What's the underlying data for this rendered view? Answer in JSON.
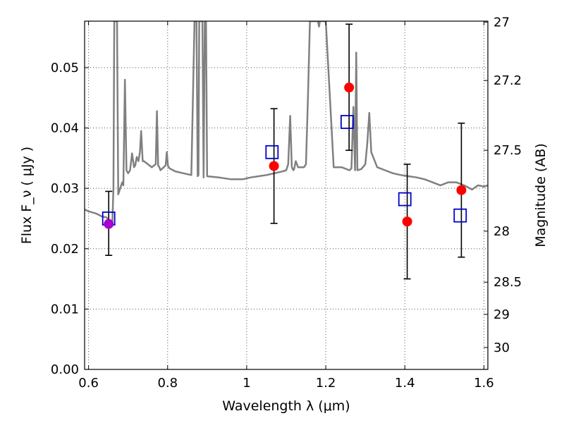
{
  "chart_data": {
    "type": "scatter",
    "xlabel": "Wavelength  λ (μm)",
    "ylabel": "Flux  F_ν  ( μJy )",
    "y2label": "Magnitude (AB)",
    "xlim": [
      0.59,
      1.61
    ],
    "ylim": [
      0.0,
      0.0577
    ],
    "grid": true,
    "legend": "none",
    "x_ticks": [
      0.6,
      0.8,
      1.0,
      1.2,
      1.4,
      1.6
    ],
    "x_tick_labels": [
      "0.6",
      "0.8",
      "1",
      "1.2",
      "1.4",
      "1.6"
    ],
    "y_ticks": [
      0.0,
      0.01,
      0.02,
      0.03,
      0.04,
      0.05
    ],
    "y_tick_labels": [
      "0.00",
      "0.01",
      "0.02",
      "0.03",
      "0.04",
      "0.05"
    ],
    "y2_ticks": [
      27,
      27.2,
      27.5,
      28,
      28.5,
      29,
      30
    ],
    "y2_tick_labels": [
      "27",
      "27.2",
      "27.5",
      "28",
      "28.5",
      "29",
      "30"
    ],
    "colors": {
      "spectrum": "#808080",
      "observed": "#ff0000",
      "observed_overlap": "#aa00cc",
      "model": "#0000cc",
      "errorbar": "#000000",
      "grid": "#555555"
    },
    "series": [
      {
        "type": "line",
        "x": [
          0.59,
          0.6,
          0.62,
          0.635,
          0.645,
          0.655,
          0.66,
          0.663,
          0.665,
          0.668,
          0.672,
          0.675,
          0.68,
          0.685,
          0.688,
          0.692,
          0.696,
          0.7,
          0.705,
          0.71,
          0.715,
          0.718,
          0.722,
          0.726,
          0.73,
          0.733,
          0.737,
          0.74,
          0.75,
          0.76,
          0.77,
          0.773,
          0.776,
          0.779,
          0.782,
          0.79,
          0.795,
          0.798,
          0.801,
          0.805,
          0.82,
          0.84,
          0.86,
          0.868,
          0.87,
          0.873,
          0.876,
          0.878,
          0.88,
          0.883,
          0.886,
          0.888,
          0.891,
          0.894,
          0.897,
          0.9,
          0.93,
          0.96,
          0.99,
          1.01,
          1.03,
          1.05,
          1.07,
          1.09,
          1.1,
          1.105,
          1.11,
          1.114,
          1.118,
          1.12,
          1.124,
          1.13,
          1.145,
          1.15,
          1.155,
          1.16,
          1.165,
          1.175,
          1.18,
          1.183,
          1.185,
          1.188,
          1.192,
          1.2,
          1.22,
          1.24,
          1.26,
          1.265,
          1.27,
          1.274,
          1.277,
          1.28,
          1.29,
          1.3,
          1.305,
          1.31,
          1.315,
          1.33,
          1.35,
          1.37,
          1.39,
          1.41,
          1.43,
          1.45,
          1.47,
          1.49,
          1.51,
          1.53,
          1.55,
          1.57,
          1.585,
          1.6,
          1.61
        ],
        "y": [
          0.0265,
          0.0262,
          0.0258,
          0.0253,
          0.0252,
          0.0245,
          0.024,
          0.03,
          0.0577,
          0.0577,
          0.0577,
          0.029,
          0.03,
          0.031,
          0.0305,
          0.048,
          0.033,
          0.0325,
          0.033,
          0.0358,
          0.0335,
          0.0338,
          0.0352,
          0.0345,
          0.036,
          0.0395,
          0.0345,
          0.0345,
          0.034,
          0.0335,
          0.034,
          0.0428,
          0.0338,
          0.0335,
          0.033,
          0.0335,
          0.0338,
          0.036,
          0.0337,
          0.0333,
          0.0328,
          0.0325,
          0.0322,
          0.0577,
          0.0577,
          0.0577,
          0.032,
          0.0322,
          0.0577,
          0.0577,
          0.0577,
          0.0577,
          0.0318,
          0.0577,
          0.0577,
          0.032,
          0.0318,
          0.0315,
          0.0315,
          0.0318,
          0.032,
          0.0322,
          0.0325,
          0.0328,
          0.033,
          0.034,
          0.042,
          0.0335,
          0.033,
          0.0332,
          0.0345,
          0.0335,
          0.0335,
          0.034,
          0.045,
          0.0577,
          0.0577,
          0.0577,
          0.0577,
          0.0568,
          0.0577,
          0.0577,
          0.0577,
          0.0577,
          0.0335,
          0.0335,
          0.033,
          0.0333,
          0.0435,
          0.033,
          0.0525,
          0.033,
          0.0332,
          0.034,
          0.0375,
          0.0425,
          0.036,
          0.0335,
          0.033,
          0.0325,
          0.0322,
          0.032,
          0.0318,
          0.0315,
          0.031,
          0.0305,
          0.031,
          0.031,
          0.0305,
          0.0298,
          0.0305,
          0.0303,
          0.0305
        ]
      },
      {
        "type": "errorbar",
        "points": [
          {
            "x": 0.651,
            "y": 0.0241,
            "yerr_low": 0.0189,
            "yerr_high": 0.0295
          },
          {
            "x": 1.069,
            "y": 0.0337,
            "yerr_low": 0.0242,
            "yerr_high": 0.0432
          },
          {
            "x": 1.259,
            "y": 0.0467,
            "yerr_low": 0.0363,
            "yerr_high": 0.0572
          },
          {
            "x": 1.406,
            "y": 0.0245,
            "yerr_low": 0.015,
            "yerr_high": 0.034
          },
          {
            "x": 1.543,
            "y": 0.0297,
            "yerr_low": 0.0186,
            "yerr_high": 0.0408
          }
        ]
      },
      {
        "type": "scatter",
        "marker": "square",
        "x": [
          0.651,
          1.064,
          1.254,
          1.4,
          1.54
        ],
        "y": [
          0.025,
          0.036,
          0.041,
          0.0282,
          0.0255
        ]
      }
    ]
  }
}
